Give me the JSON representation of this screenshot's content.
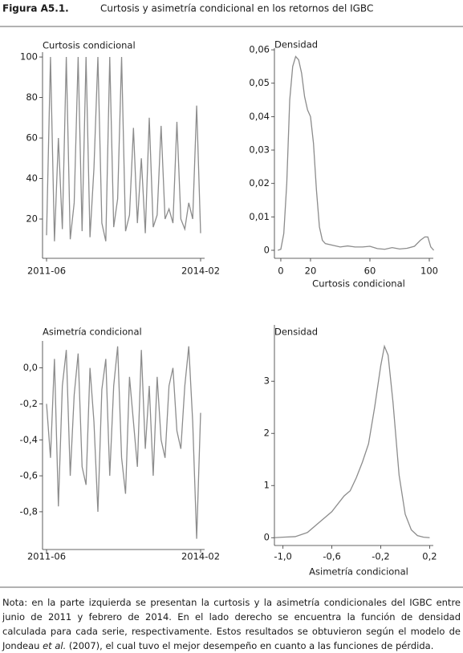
{
  "header": {
    "label": "Figura A5.1.",
    "title": "Curtosis y asimetría condicional en los retornos del IGBC"
  },
  "chart_data": [
    {
      "type": "line",
      "title": "Curtosis condicional",
      "categories": [
        "2011-06",
        null,
        null,
        null,
        null,
        null,
        null,
        null,
        null,
        null,
        null,
        null,
        null,
        null,
        null,
        null,
        null,
        null,
        null,
        null,
        null,
        null,
        null,
        null,
        null,
        null,
        null,
        null,
        null,
        null,
        null,
        null,
        null,
        null,
        null,
        null,
        null,
        null,
        null,
        "2014-02"
      ],
      "values": [
        12,
        100,
        9,
        60,
        15,
        100,
        10,
        28,
        100,
        14,
        100,
        11,
        45,
        100,
        18,
        9,
        100,
        16,
        30,
        100,
        14,
        22,
        65,
        18,
        50,
        13,
        70,
        16,
        22,
        66,
        20,
        25,
        18,
        68,
        20,
        15,
        28,
        20,
        76,
        13
      ],
      "color": "#8c8c8c",
      "ylim": [
        0.6,
        102.4
      ],
      "yticks": [
        20,
        40,
        60,
        80,
        100
      ]
    },
    {
      "type": "line",
      "title": "Densidad",
      "xlabel": "Curtosis condicional",
      "x": [
        -2,
        0,
        2,
        4,
        6,
        8,
        10,
        12,
        14,
        16,
        18,
        20,
        22,
        24,
        26,
        28,
        30,
        35,
        40,
        45,
        50,
        55,
        60,
        65,
        70,
        75,
        80,
        85,
        90,
        94,
        97,
        99,
        101,
        103
      ],
      "values": [
        0,
        0.0003,
        0.005,
        0.02,
        0.045,
        0.055,
        0.058,
        0.057,
        0.053,
        0.046,
        0.042,
        0.04,
        0.032,
        0.018,
        0.007,
        0.003,
        0.002,
        0.0015,
        0.001,
        0.0013,
        0.001,
        0.001,
        0.0012,
        0.0005,
        0.0003,
        0.0008,
        0.0004,
        0.0006,
        0.0012,
        0.003,
        0.004,
        0.004,
        0.001,
        0
      ],
      "color": "#8c8c8c",
      "xlim": [
        -4.3,
        102.7
      ],
      "xticks": [
        0,
        20,
        60,
        100
      ],
      "ylim": [
        -0.0024,
        0.0605
      ],
      "yticks": [
        0,
        {
          "value": 0.01,
          "label": "0,01"
        },
        {
          "value": 0.02,
          "label": "0,02"
        },
        {
          "value": 0.03,
          "label": "0,03"
        },
        {
          "value": 0.04,
          "label": "0,04"
        },
        {
          "value": 0.05,
          "label": "0,05"
        },
        {
          "value": 0.06,
          "label": "0,06"
        }
      ]
    },
    {
      "type": "line",
      "title": "Asimetría condicional",
      "categories": [
        "2011-06",
        null,
        null,
        null,
        null,
        null,
        null,
        null,
        null,
        null,
        null,
        null,
        null,
        null,
        null,
        null,
        null,
        null,
        null,
        null,
        null,
        null,
        null,
        null,
        null,
        null,
        null,
        null,
        null,
        null,
        null,
        null,
        null,
        null,
        null,
        null,
        null,
        null,
        null,
        "2014-02"
      ],
      "values": [
        -0.2,
        -0.5,
        0.05,
        -0.77,
        -0.1,
        0.1,
        -0.6,
        -0.15,
        0.08,
        -0.55,
        -0.65,
        0.0,
        -0.3,
        -0.8,
        -0.12,
        0.05,
        -0.6,
        -0.1,
        0.12,
        -0.5,
        -0.7,
        -0.05,
        -0.3,
        -0.55,
        0.1,
        -0.45,
        -0.1,
        -0.6,
        -0.05,
        -0.4,
        -0.5,
        -0.1,
        0.0,
        -0.35,
        -0.45,
        -0.1,
        0.12,
        -0.3,
        -0.95,
        -0.25
      ],
      "color": "#8c8c8c",
      "ylim": [
        -1.01,
        0.15
      ],
      "yticks": [
        {
          "value": -0.8,
          "label": "-0,8"
        },
        {
          "value": -0.6,
          "label": "-0,6"
        },
        {
          "value": -0.4,
          "label": "-0,4"
        },
        {
          "value": -0.2,
          "label": "-0,2"
        },
        {
          "value": 0,
          "label": "0,0"
        }
      ]
    },
    {
      "type": "line",
      "title": "Densidad",
      "xlabel": "Asimetría condicional",
      "x": [
        -1.07,
        -1.0,
        -0.9,
        -0.8,
        -0.7,
        -0.6,
        -0.5,
        -0.45,
        -0.4,
        -0.35,
        -0.3,
        -0.25,
        -0.2,
        -0.17,
        -0.14,
        -0.1,
        -0.05,
        0,
        0.05,
        0.1,
        0.15,
        0.2
      ],
      "values": [
        0,
        0.01,
        0.02,
        0.1,
        0.3,
        0.5,
        0.8,
        0.9,
        1.15,
        1.45,
        1.8,
        2.5,
        3.3,
        3.67,
        3.5,
        2.6,
        1.2,
        0.45,
        0.15,
        0.04,
        0.01,
        0
      ],
      "color": "#8c8c8c",
      "xlim": [
        -1.07,
        0.23
      ],
      "xticks": [
        {
          "value": -1.0,
          "label": "-1,0"
        },
        {
          "value": -0.6,
          "label": "-0,6"
        },
        {
          "value": -0.2,
          "label": "-0,2"
        },
        {
          "value": 0.2,
          "label": "0,2"
        }
      ],
      "ylim": [
        -0.15,
        4.08
      ],
      "yticks": [
        0,
        1,
        2,
        3
      ]
    }
  ],
  "note": [
    "Nota: en la parte izquierda se presentan la curtosis y la asimetría condicionales del IGBC entre junio de 2011 y febrero de 2014. En el lado derecho se encuentra la función de densidad calculada para cada serie, respectivamente. Estos resultados se obtuvieron según el modelo de Jondeau ",
    "et al.",
    " (2007), el cual tuvo el mejor desempeño en cuanto a las funciones de pérdida."
  ]
}
